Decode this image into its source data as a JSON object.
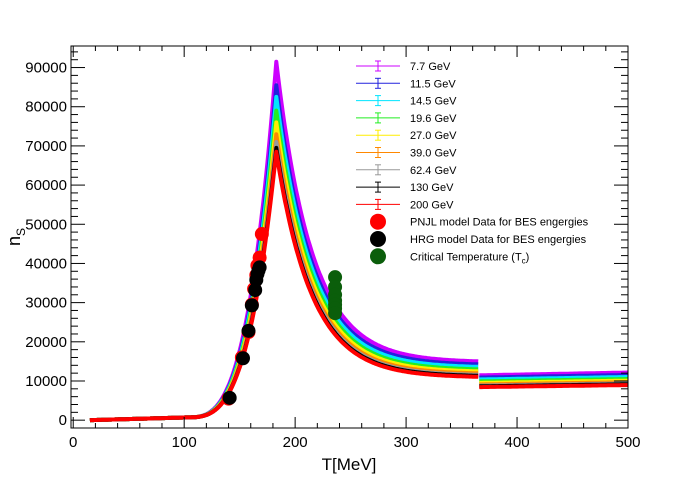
{
  "chart_data": {
    "type": "line",
    "xlabel": "T[MeV]",
    "ylabel_main": "n",
    "ylabel_sub": "S",
    "xlim": [
      -2,
      500
    ],
    "ylim": [
      -2000,
      95500
    ],
    "x_ticks": [
      0,
      100,
      200,
      300,
      400,
      500
    ],
    "x_tick_labels": [
      "0",
      "100",
      "200",
      "300",
      "400",
      "500"
    ],
    "y_ticks": [
      0,
      10000,
      20000,
      30000,
      40000,
      50000,
      60000,
      70000,
      80000,
      90000
    ],
    "y_tick_labels": [
      "0",
      "10000",
      "20000",
      "30000",
      "40000",
      "50000",
      "60000",
      "70000",
      "80000",
      "90000"
    ],
    "legend_position": "top-right",
    "series": [
      {
        "name": "7.7 GeV",
        "color": "#cc00ff",
        "peak": 91500,
        "plateau": 11800
      },
      {
        "name": "11.5 GeV",
        "color": "#2222dd",
        "peak": 85500,
        "plateau": 11200
      },
      {
        "name": "14.5 GeV",
        "color": "#00e5ff",
        "peak": 82500,
        "plateau": 10700
      },
      {
        "name": "19.6 GeV",
        "color": "#22ee22",
        "peak": 79000,
        "plateau": 10200
      },
      {
        "name": "27.0 GeV",
        "color": "#ffee00",
        "peak": 76000,
        "plateau": 9800
      },
      {
        "name": "39.0 GeV",
        "color": "#ff8800",
        "peak": 73000,
        "plateau": 9400
      },
      {
        "name": "62.4 GeV",
        "color": "#999999",
        "peak": 71000,
        "plateau": 9100
      },
      {
        "name": "130 GeV",
        "color": "#000000",
        "peak": 69500,
        "plateau": 8900
      },
      {
        "name": "200 GeV",
        "color": "#ff0000",
        "peak": 68500,
        "plateau": 8700
      }
    ],
    "pnjl_points": {
      "name": "PNJL model Data for BES engergies",
      "color": "#ff0000",
      "points": [
        [
          140,
          5500
        ],
        [
          152,
          16000
        ],
        [
          158,
          22500
        ],
        [
          161,
          29500
        ],
        [
          163,
          33500
        ],
        [
          165,
          37000
        ],
        [
          166,
          39500
        ],
        [
          168,
          41500
        ],
        [
          170,
          47500
        ]
      ]
    },
    "hrg_points": {
      "name": "HRG model Data for BES engergies",
      "color": "#000000",
      "points": [
        [
          141,
          5700
        ],
        [
          153,
          15800
        ],
        [
          158,
          22800
        ],
        [
          161,
          29300
        ],
        [
          164,
          33200
        ],
        [
          165,
          35800
        ],
        [
          166,
          37300
        ],
        [
          167,
          38200
        ],
        [
          168,
          39000
        ]
      ]
    },
    "tc_points": {
      "name": "Critical Temperature (T",
      "name_sub": "c",
      "name_end": ")",
      "color": "#0b5e0b",
      "points": [
        [
          236,
          36500
        ],
        [
          236,
          34000
        ],
        [
          236,
          32000
        ],
        [
          236,
          30500
        ],
        [
          236,
          29500
        ],
        [
          236,
          28500
        ],
        [
          236,
          27300
        ]
      ]
    }
  }
}
